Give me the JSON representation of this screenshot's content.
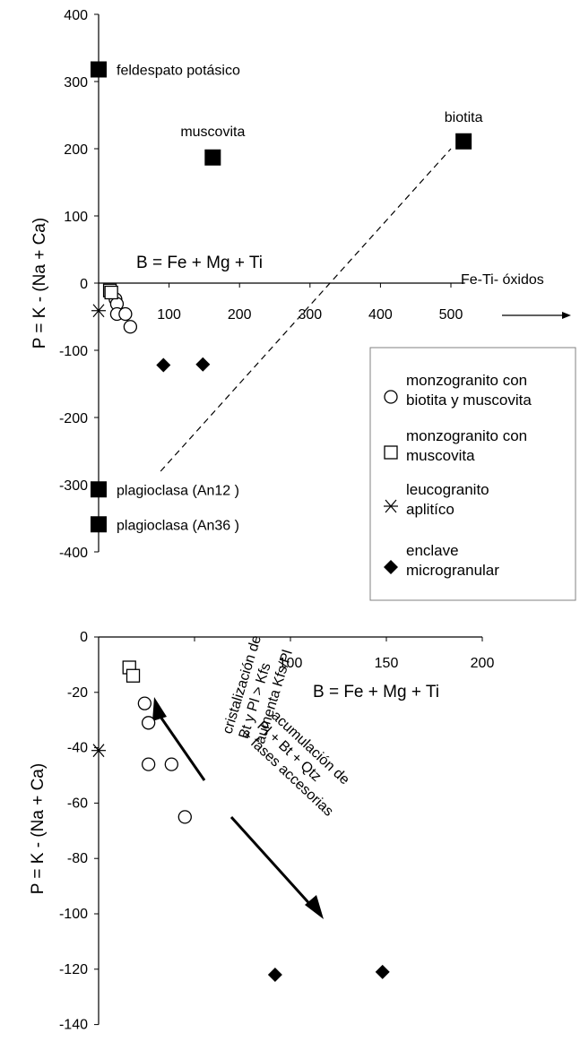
{
  "colors": {
    "ink": "#000000",
    "background": "#ffffff",
    "legend_border": "#808080"
  },
  "chart_data": [
    {
      "type": "scatter",
      "xlabel": "B = Fe + Mg + Ti",
      "ylabel": "P = K - (Na + Ca)",
      "xlim": [
        0,
        520
      ],
      "ylim": [
        -400,
        400
      ],
      "x_ticks": [
        100,
        200,
        300,
        400,
        500
      ],
      "y_ticks": [
        400,
        300,
        200,
        100,
        0,
        -100,
        -200,
        -300,
        -400
      ],
      "annotations": {
        "vector_label": "Fe-Ti- óxidos"
      },
      "legend_position": "right",
      "legend": [
        {
          "marker": "circle",
          "label": [
            "monzogranito con",
            "biotita y muscovita"
          ]
        },
        {
          "marker": "square",
          "label": [
            "monzogranito con",
            "muscovita"
          ]
        },
        {
          "marker": "asterisk",
          "label": [
            "leucogranito",
            "aplitíco"
          ]
        },
        {
          "marker": "diamond",
          "label": [
            "enclave",
            "microgranular"
          ]
        }
      ],
      "minerals": [
        {
          "name": "feldespato potásico",
          "x": 0,
          "y": 318
        },
        {
          "name": "muscovita",
          "x": 162,
          "y": 187
        },
        {
          "name": "biotita",
          "x": 518,
          "y": 211
        },
        {
          "name": "plagioclasa (An12 )",
          "x": 0,
          "y": -307
        },
        {
          "name": "plagioclasa (An36 )",
          "x": 0,
          "y": -359
        }
      ],
      "series": [
        {
          "marker": "circle",
          "points": [
            [
              24,
              -24
            ],
            [
              26,
              -31
            ],
            [
              26,
              -46
            ],
            [
              38,
              -46
            ],
            [
              45,
              -65
            ]
          ]
        },
        {
          "marker": "square",
          "points": [
            [
              16,
              -11
            ],
            [
              18,
              -14
            ]
          ]
        },
        {
          "marker": "asterisk",
          "points": [
            [
              0,
              -41
            ]
          ]
        },
        {
          "marker": "diamond",
          "points": [
            [
              92,
              -122
            ],
            [
              148,
              -121
            ]
          ]
        }
      ],
      "dashed_line": [
        [
          88,
          -280
        ],
        [
          500,
          200
        ]
      ]
    },
    {
      "type": "scatter",
      "xlabel": "B = Fe + Mg + Ti",
      "ylabel": "P = K - (Na + Ca)",
      "xlim": [
        0,
        200
      ],
      "ylim": [
        -140,
        0
      ],
      "x_ticks": [
        100,
        150,
        200
      ],
      "y_ticks": [
        0,
        -20,
        -40,
        -60,
        -80,
        -100,
        -120,
        -140
      ],
      "annotations": {
        "arrow1": [
          "cristalización de",
          "Bt y Pl > Kfs",
          "aumenta Kfs/Pl"
        ],
        "arrow2": [
          "acumulación de",
          "Pl + Bt + Qtz",
          "+ fases accesorias"
        ]
      },
      "series": [
        {
          "marker": "circle",
          "points": [
            [
              24,
              -24
            ],
            [
              26,
              -31
            ],
            [
              26,
              -46
            ],
            [
              38,
              -46
            ],
            [
              45,
              -65
            ]
          ]
        },
        {
          "marker": "square",
          "points": [
            [
              16,
              -11
            ],
            [
              18,
              -14
            ]
          ]
        },
        {
          "marker": "asterisk",
          "points": [
            [
              0,
              -41
            ]
          ]
        },
        {
          "marker": "diamond",
          "points": [
            [
              92,
              -122
            ],
            [
              148,
              -121
            ]
          ]
        }
      ]
    }
  ]
}
